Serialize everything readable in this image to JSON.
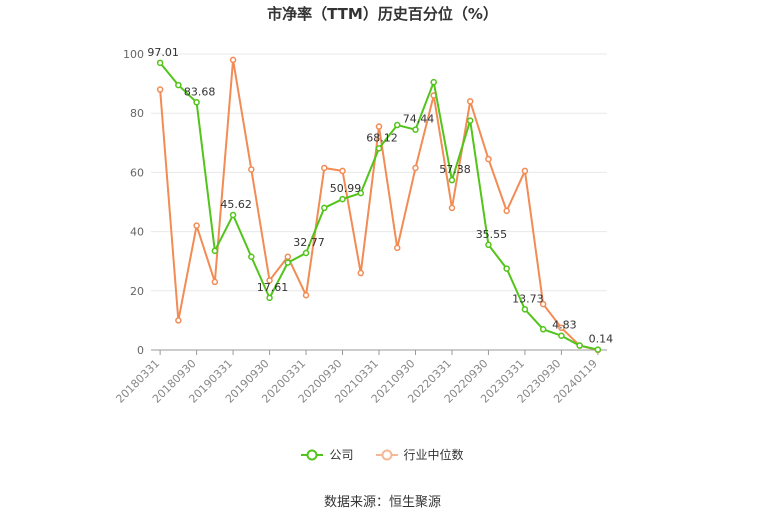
{
  "chart_data": {
    "type": "line",
    "title": "市净率（TTM）历史百分位（%）",
    "ylim": [
      0,
      100
    ],
    "yticks": [
      0,
      20,
      40,
      60,
      80,
      100
    ],
    "grid": true,
    "legend_position": "bottom",
    "x": [
      "20180331",
      "20180630",
      "20180930",
      "20181231",
      "20190331",
      "20190630",
      "20190930",
      "20191231",
      "20200331",
      "20200630",
      "20200930",
      "20201231",
      "20210331",
      "20210630",
      "20210930",
      "20211231",
      "20220331",
      "20220630",
      "20220930",
      "20221231",
      "20230331",
      "20230630",
      "20230930",
      "20231231",
      "20240119"
    ],
    "xtick_labels": [
      "20180331",
      "20180930",
      "20190331",
      "20190930",
      "20200331",
      "20200930",
      "20210331",
      "20210930",
      "20220331",
      "20220930",
      "20230331",
      "20230930",
      "20240119"
    ],
    "series": [
      {
        "name": "公司",
        "color": "#52c41a",
        "values": [
          97.01,
          89.5,
          83.68,
          33.5,
          45.62,
          31.5,
          17.61,
          29.5,
          32.77,
          48.0,
          50.99,
          53.0,
          68.12,
          76.0,
          74.44,
          90.5,
          57.38,
          77.5,
          35.55,
          27.5,
          13.73,
          7.0,
          4.83,
          1.5,
          0.14
        ],
        "labels": {
          "0": "97.01",
          "2": "83.68",
          "4": "45.62",
          "6": "17.61",
          "8": "32.77",
          "10": "50.99",
          "12": "68.12",
          "14": "74.44",
          "16": "57.38",
          "18": "35.55",
          "20": "13.73",
          "22": "4.83",
          "24": "0.14"
        }
      },
      {
        "name": "行业中位数",
        "color": "#f28b54",
        "values": [
          88.0,
          10.0,
          42.0,
          23.0,
          98.0,
          61.0,
          23.5,
          31.5,
          18.5,
          61.5,
          60.5,
          26.0,
          75.5,
          34.5,
          61.5,
          86.0,
          48.0,
          84.0,
          64.5,
          47.0,
          60.5,
          15.5,
          7.5,
          1.5,
          0.0
        ]
      }
    ]
  },
  "legend": {
    "company_label": "公司",
    "industry_label": "行业中位数"
  },
  "source": "数据来源：恒生聚源"
}
